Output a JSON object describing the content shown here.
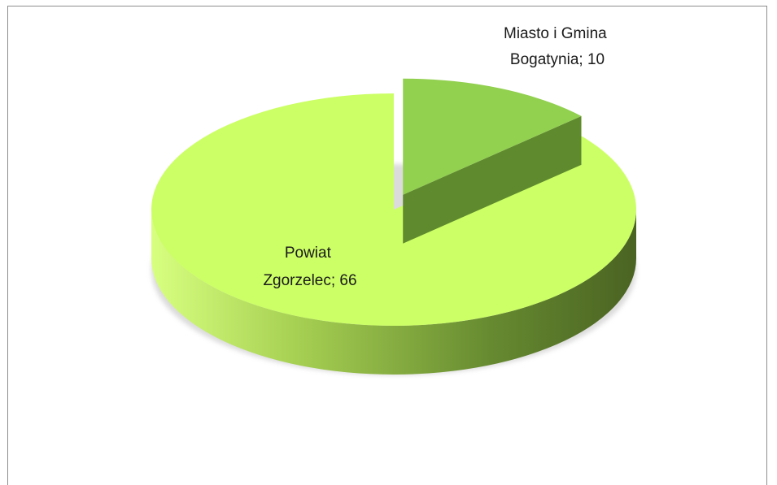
{
  "chart_data": {
    "type": "pie",
    "title": "",
    "style": "3d-exploded",
    "categories": [
      "Miasto i Gmina Bogatynia",
      "Powiat Zgorzelec"
    ],
    "values": [
      10,
      66
    ],
    "data_labels": [
      {
        "name": "Miasto i Gmina",
        "name2": "Bogatynia;",
        "value": "10"
      },
      {
        "name": "Powiat",
        "name2": "Zgorzelec;",
        "value": "66"
      }
    ],
    "colors": {
      "slice_small_top": "#92d050",
      "slice_small_side": "#5f8a2e",
      "slice_large_top": "#ccff66",
      "slice_large_side_light": "#b2e060",
      "slice_large_side_dark": "#4f6b25"
    },
    "legend": "none"
  }
}
